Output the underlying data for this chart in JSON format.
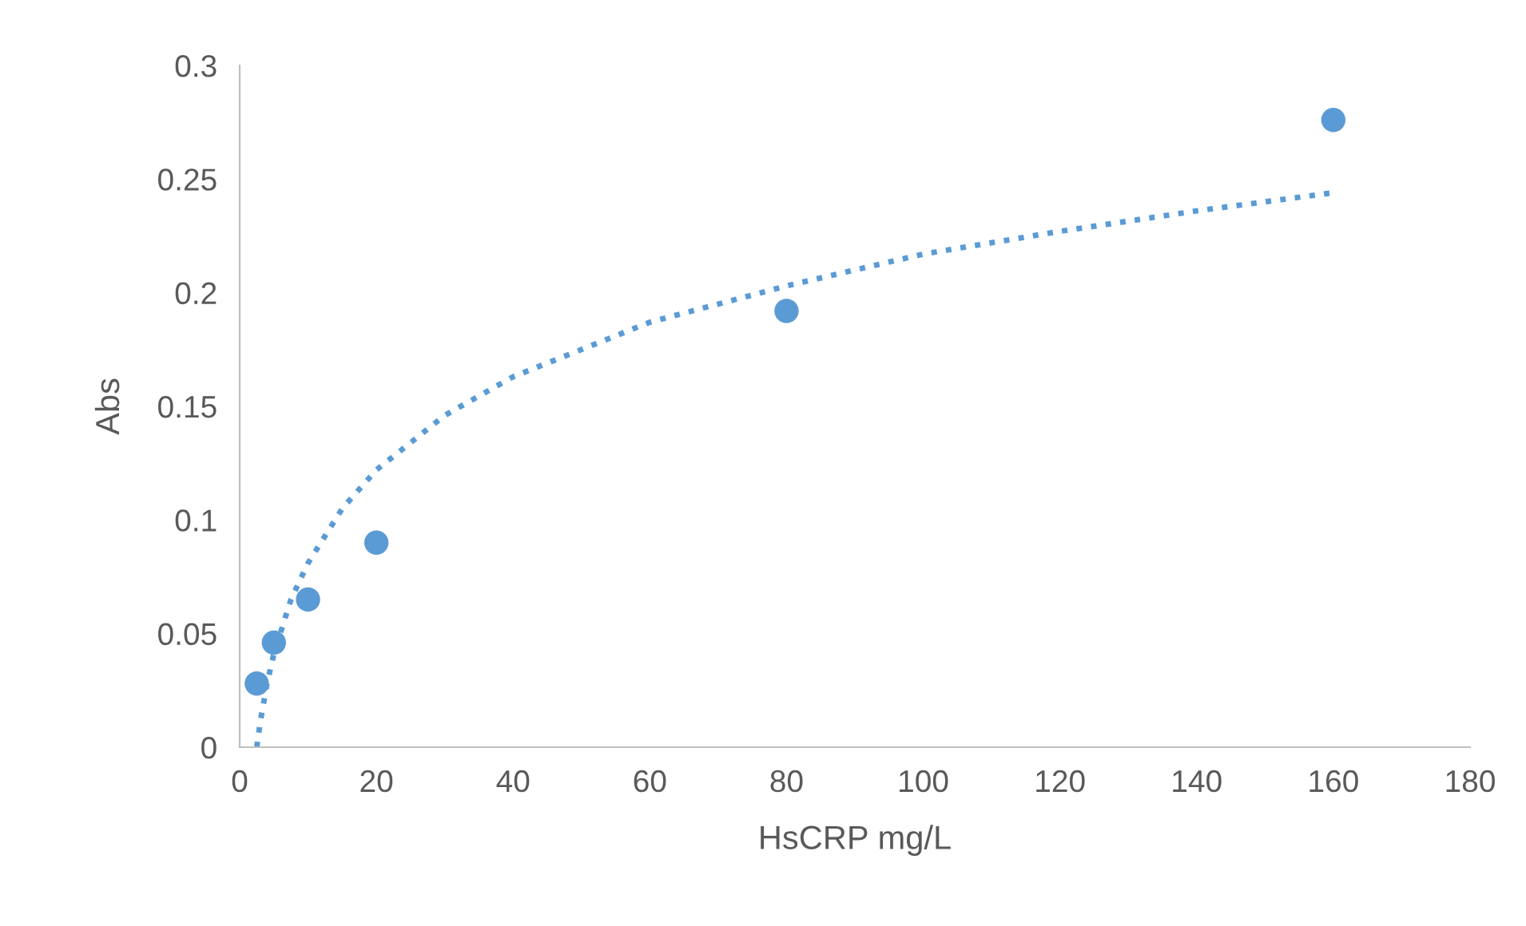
{
  "chart_data": {
    "type": "scatter",
    "xlabel": "HsCRP mg/L",
    "ylabel": "Abs",
    "xlim": [
      0,
      180
    ],
    "xticks": [
      0,
      20,
      40,
      60,
      80,
      100,
      120,
      140,
      160,
      180
    ],
    "ylim": [
      0,
      0.3
    ],
    "yticks": [
      0,
      0.05,
      0.1,
      0.15,
      0.2,
      0.25,
      0.3
    ],
    "grid": false,
    "legend": false,
    "marker": "circle",
    "series": [
      {
        "color": "#5b9bd5",
        "x": [
          2.5,
          5,
          10,
          20,
          80,
          160
        ],
        "values": [
          0.028,
          0.046,
          0.065,
          0.09,
          0.192,
          0.276
        ]
      },
      {
        "type": "line",
        "color": "#5b9bd5",
        "line_style": "dotted",
        "marker": "none",
        "x": [
          2.5,
          3,
          4,
          5,
          7.5,
          10,
          15,
          20,
          30,
          40,
          60,
          80,
          100,
          120,
          140,
          160
        ],
        "values": [
          0,
          0.011,
          0.028,
          0.041,
          0.065,
          0.081,
          0.105,
          0.122,
          0.146,
          0.163,
          0.187,
          0.203,
          0.217,
          0.227,
          0.236,
          0.244
        ]
      }
    ]
  }
}
